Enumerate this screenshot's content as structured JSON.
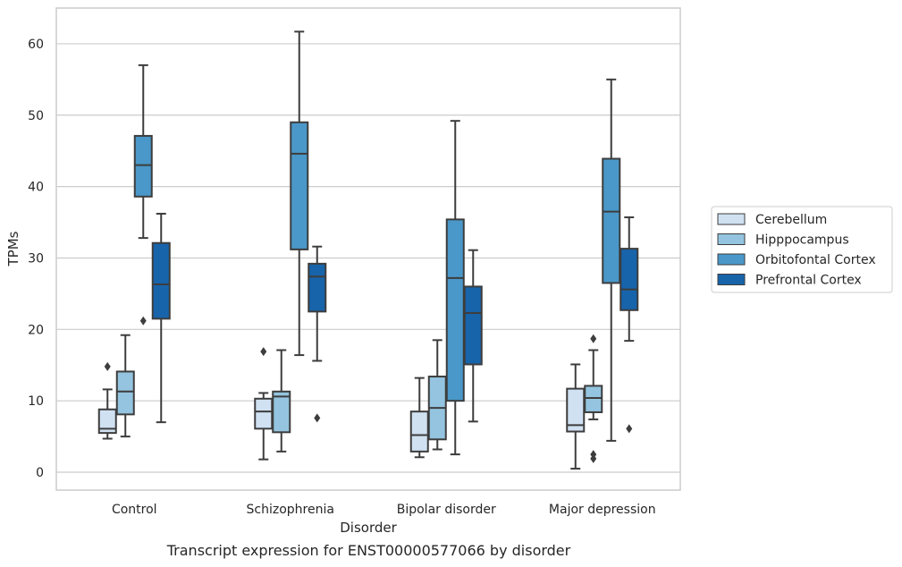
{
  "caption": "Transcript expression for ENST00000577066 by disorder",
  "chart_data": {
    "type": "box",
    "title": "",
    "xlabel": "Disorder",
    "ylabel": "TPMs",
    "ylim": [
      -2.5,
      65
    ],
    "yticks": [
      0,
      10,
      20,
      30,
      40,
      50,
      60
    ],
    "grid": "horizontal",
    "legend_position": "right",
    "categories": [
      "Control",
      "Schizophrenia",
      "Bipolar disorder",
      "Major depression"
    ],
    "series": [
      {
        "name": "Cerebellum",
        "color": "#d0e1f2",
        "boxes": [
          {
            "whisker_low": 4.7,
            "q1": 5.5,
            "median": 6.1,
            "q3": 8.8,
            "whisker_high": 11.6,
            "outliers": [
              14.8
            ]
          },
          {
            "whisker_low": 1.8,
            "q1": 6.1,
            "median": 8.5,
            "q3": 10.3,
            "whisker_high": 11.1,
            "outliers": [
              16.9
            ]
          },
          {
            "whisker_low": 2.1,
            "q1": 2.9,
            "median": 5.2,
            "q3": 8.5,
            "whisker_high": 13.2,
            "outliers": []
          },
          {
            "whisker_low": 0.5,
            "q1": 5.7,
            "median": 6.6,
            "q3": 11.7,
            "whisker_high": 15.1,
            "outliers": []
          }
        ]
      },
      {
        "name": "Hipppocampus",
        "color": "#94c4df",
        "boxes": [
          {
            "whisker_low": 5.0,
            "q1": 8.1,
            "median": 11.3,
            "q3": 14.1,
            "whisker_high": 19.2,
            "outliers": []
          },
          {
            "whisker_low": 2.9,
            "q1": 5.6,
            "median": 10.6,
            "q3": 11.3,
            "whisker_high": 17.1,
            "outliers": []
          },
          {
            "whisker_low": 3.2,
            "q1": 4.6,
            "median": 9.0,
            "q3": 13.4,
            "whisker_high": 18.5,
            "outliers": []
          },
          {
            "whisker_low": 7.4,
            "q1": 8.4,
            "median": 10.4,
            "q3": 12.1,
            "whisker_high": 17.1,
            "outliers": [
              18.7,
              2.5,
              1.9
            ]
          }
        ]
      },
      {
        "name": "Orbitofontal Cortex",
        "color": "#4a98c9",
        "boxes": [
          {
            "whisker_low": 32.8,
            "q1": 38.6,
            "median": 43.0,
            "q3": 47.1,
            "whisker_high": 57.0,
            "outliers": [
              21.2
            ]
          },
          {
            "whisker_low": 16.4,
            "q1": 31.2,
            "median": 44.6,
            "q3": 49.0,
            "whisker_high": 61.7,
            "outliers": []
          },
          {
            "whisker_low": 2.5,
            "q1": 10.0,
            "median": 27.2,
            "q3": 35.4,
            "whisker_high": 49.2,
            "outliers": []
          },
          {
            "whisker_low": 4.4,
            "q1": 26.5,
            "median": 36.5,
            "q3": 43.9,
            "whisker_high": 55.0,
            "outliers": []
          }
        ]
      },
      {
        "name": "Prefrontal Cortex",
        "color": "#1764ab",
        "boxes": [
          {
            "whisker_low": 7.0,
            "q1": 21.5,
            "median": 26.3,
            "q3": 32.1,
            "whisker_high": 36.2,
            "outliers": []
          },
          {
            "whisker_low": 15.6,
            "q1": 22.5,
            "median": 27.4,
            "q3": 29.2,
            "whisker_high": 31.6,
            "outliers": [
              7.6
            ]
          },
          {
            "whisker_low": 7.1,
            "q1": 15.1,
            "median": 22.3,
            "q3": 26.0,
            "whisker_high": 31.1,
            "outliers": []
          },
          {
            "whisker_low": 18.4,
            "q1": 22.7,
            "median": 25.6,
            "q3": 31.3,
            "whisker_high": 35.7,
            "outliers": [
              6.1
            ]
          }
        ]
      }
    ]
  }
}
